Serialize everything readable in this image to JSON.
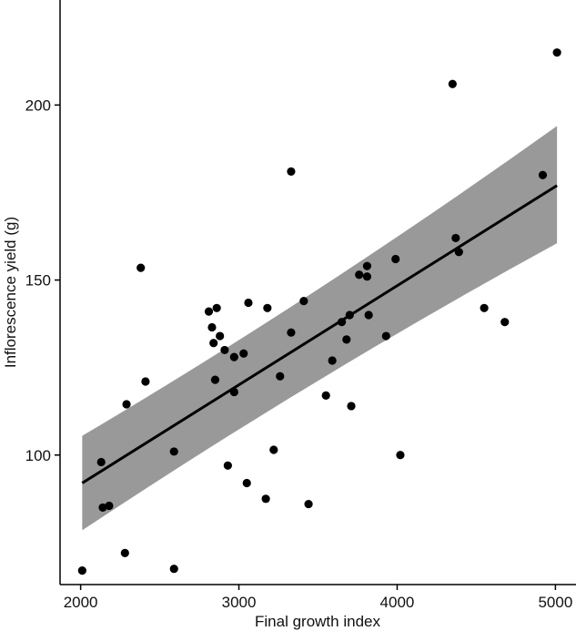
{
  "chart_data": {
    "type": "scatter",
    "title": "",
    "xlabel": "Final growth index",
    "ylabel": "Inflorescence yield (g)",
    "xlim": [
      1870,
      5130
    ],
    "ylim": [
      63,
      230
    ],
    "x_ticks": [
      2000,
      3000,
      4000,
      5000
    ],
    "y_ticks": [
      100,
      150,
      200
    ],
    "x_tick_labels": [
      "2000",
      "3000",
      "4000",
      "5000"
    ],
    "y_tick_labels": [
      "100",
      "150",
      "200"
    ],
    "grid": false,
    "legend": "none",
    "colors": {
      "points": "#000000",
      "fit_line": "#000000",
      "confidence_band": "#999999"
    },
    "points": [
      {
        "x": 2010,
        "y": 67
      },
      {
        "x": 2130,
        "y": 98
      },
      {
        "x": 2140,
        "y": 85
      },
      {
        "x": 2180,
        "y": 85.5
      },
      {
        "x": 2280,
        "y": 72
      },
      {
        "x": 2290,
        "y": 114.5
      },
      {
        "x": 2380,
        "y": 153.5
      },
      {
        "x": 2410,
        "y": 121
      },
      {
        "x": 2590,
        "y": 101
      },
      {
        "x": 2590,
        "y": 67.5
      },
      {
        "x": 2810,
        "y": 141
      },
      {
        "x": 2830,
        "y": 136.5
      },
      {
        "x": 2840,
        "y": 132
      },
      {
        "x": 2850,
        "y": 121.5
      },
      {
        "x": 2860,
        "y": 142
      },
      {
        "x": 2880,
        "y": 134
      },
      {
        "x": 2910,
        "y": 130
      },
      {
        "x": 2930,
        "y": 97
      },
      {
        "x": 2970,
        "y": 128
      },
      {
        "x": 2970,
        "y": 118
      },
      {
        "x": 3030,
        "y": 129
      },
      {
        "x": 3050,
        "y": 92
      },
      {
        "x": 3060,
        "y": 143.5
      },
      {
        "x": 3170,
        "y": 87.5
      },
      {
        "x": 3180,
        "y": 142
      },
      {
        "x": 3220,
        "y": 101.5
      },
      {
        "x": 3260,
        "y": 122.5
      },
      {
        "x": 3330,
        "y": 181
      },
      {
        "x": 3330,
        "y": 135
      },
      {
        "x": 3410,
        "y": 144
      },
      {
        "x": 3440,
        "y": 86
      },
      {
        "x": 3550,
        "y": 117
      },
      {
        "x": 3590,
        "y": 127
      },
      {
        "x": 3650,
        "y": 138
      },
      {
        "x": 3680,
        "y": 133
      },
      {
        "x": 3700,
        "y": 140
      },
      {
        "x": 3710,
        "y": 114
      },
      {
        "x": 3760,
        "y": 151.5
      },
      {
        "x": 3810,
        "y": 154
      },
      {
        "x": 3810,
        "y": 151
      },
      {
        "x": 3820,
        "y": 140
      },
      {
        "x": 3930,
        "y": 134
      },
      {
        "x": 3990,
        "y": 156
      },
      {
        "x": 4020,
        "y": 100
      },
      {
        "x": 4350,
        "y": 206
      },
      {
        "x": 4370,
        "y": 162
      },
      {
        "x": 4390,
        "y": 158
      },
      {
        "x": 4550,
        "y": 142
      },
      {
        "x": 4680,
        "y": 138
      },
      {
        "x": 4920,
        "y": 180
      },
      {
        "x": 5010,
        "y": 215
      }
    ],
    "fit": {
      "method": "linear",
      "x": [
        2010,
        5010
      ],
      "y": [
        92,
        177
      ],
      "band_lower": [
        78.5,
        160.5
      ],
      "band_mid_x": 3500,
      "band_mid": [
        130,
        138
      ]
    }
  }
}
